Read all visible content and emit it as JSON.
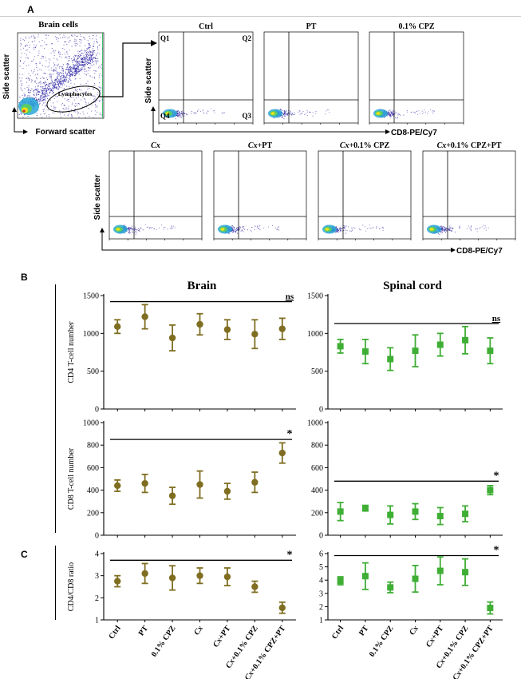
{
  "figure": {
    "panel_labels": [
      "A",
      "B",
      "C"
    ],
    "colors": {
      "brain": "#7f6e21",
      "spinal": "#3fae35",
      "axis": "#000000",
      "gate": "#000000",
      "dot_low": "#3a30a8",
      "dot_mid": "#2aa7d8",
      "dot_high": "#f3e11a",
      "dot_peak": "#d23a1f"
    },
    "icons": [
      "flow-gate-arrow",
      "bracket-arrow"
    ]
  },
  "panel_a": {
    "brain_cells": {
      "title": "Brain cells",
      "ylabel": "Side scatter",
      "xlabel": "Forward scatter",
      "gate_label": "Lymphocytes"
    },
    "quadrant_labels": [
      "Q1",
      "Q2",
      "Q3",
      "Q4"
    ],
    "row1": [
      {
        "title": "Ctrl",
        "italic_prefix": "",
        "suffix": ""
      },
      {
        "title": "PT",
        "italic_prefix": "",
        "suffix": ""
      },
      {
        "title": "0.1% CPZ",
        "italic_prefix": "",
        "suffix": ""
      }
    ],
    "row2": [
      {
        "title": "Cx",
        "italic_prefix": "Cx",
        "suffix": ""
      },
      {
        "title": "Cx+PT",
        "italic_prefix": "Cx",
        "suffix": "+PT"
      },
      {
        "title": "Cx+0.1% CPZ",
        "italic_prefix": "Cx",
        "suffix": "+0.1% CPZ"
      },
      {
        "title": "Cx+0.1% CPZ+PT",
        "italic_prefix": "Cx",
        "suffix": "+0.1% CPZ+PT"
      }
    ],
    "row1_ylabel": "Side scatter",
    "row1_xlabel": "CD8-PE/Cy7",
    "row2_ylabel": "Side scatter",
    "row2_xlabel": "CD8-PE/Cy7"
  },
  "chart_data": [
    {
      "id": "brain-cd4",
      "type": "scatter",
      "title": "Brain",
      "ylabel": "CD4 T-cell number",
      "ylim": [
        0,
        1500
      ],
      "yticks": [
        0,
        500,
        1000,
        1500
      ],
      "categories": [
        "Ctrl",
        "PT",
        "0.1% CPZ",
        "Cx",
        "Cx+PT",
        "Cx+0.1% CPZ",
        "Cx+0.1% CPZ+PT"
      ],
      "values": [
        1090,
        1220,
        940,
        1120,
        1050,
        990,
        1060
      ],
      "errors": [
        90,
        160,
        170,
        140,
        130,
        190,
        140
      ],
      "marker": "circle",
      "series_color": "brain",
      "significance": {
        "label": "ns",
        "value": 1420
      }
    },
    {
      "id": "spinal-cd4",
      "type": "scatter",
      "title": "Spinal cord",
      "ylabel": "",
      "ylim": [
        0,
        1500
      ],
      "yticks": [
        0,
        500,
        1000,
        1500
      ],
      "categories": [
        "Ctrl",
        "PT",
        "0.1% CPZ",
        "Cx",
        "Cx+PT",
        "Cx+0.1% CPZ",
        "Cx+0.1% CPZ+PT"
      ],
      "values": [
        830,
        760,
        660,
        770,
        850,
        910,
        770
      ],
      "errors": [
        90,
        160,
        150,
        210,
        150,
        180,
        170
      ],
      "marker": "square",
      "series_color": "spinal",
      "significance": {
        "label": "ns",
        "value": 1130
      }
    },
    {
      "id": "brain-cd8",
      "type": "scatter",
      "title": "",
      "ylabel": "CD8 T-cell number",
      "ylim": [
        0,
        1000
      ],
      "yticks": [
        0,
        200,
        400,
        600,
        800,
        1000
      ],
      "categories": [
        "Ctrl",
        "PT",
        "0.1% CPZ",
        "Cx",
        "Cx+PT",
        "Cx+0.1% CPZ",
        "Cx+0.1% CPZ+PT"
      ],
      "values": [
        440,
        460,
        350,
        450,
        390,
        470,
        730
      ],
      "errors": [
        50,
        80,
        75,
        120,
        70,
        90,
        90
      ],
      "marker": "circle",
      "series_color": "brain",
      "significance": {
        "label": "*",
        "value": 850
      }
    },
    {
      "id": "spinal-cd8",
      "type": "scatter",
      "title": "",
      "ylabel": "",
      "ylim": [
        0,
        1000
      ],
      "yticks": [
        0,
        200,
        400,
        600,
        800,
        1000
      ],
      "categories": [
        "Ctrl",
        "PT",
        "0.1% CPZ",
        "Cx",
        "Cx+PT",
        "Cx+0.1% CPZ",
        "Cx+0.1% CPZ+PT"
      ],
      "values": [
        210,
        240,
        180,
        210,
        170,
        190,
        400
      ],
      "errors": [
        80,
        25,
        80,
        70,
        75,
        70,
        40
      ],
      "marker": "square",
      "series_color": "spinal",
      "significance": {
        "label": "*",
        "value": 480
      }
    },
    {
      "id": "brain-ratio",
      "type": "scatter",
      "title": "",
      "ylabel": "CD4/CD8 ratio",
      "ylim": [
        1,
        4
      ],
      "yticks": [
        1,
        2,
        3,
        4
      ],
      "categories": [
        "Ctrl",
        "PT",
        "0.1% CPZ",
        "Cx",
        "Cx+PT",
        "Cx+0.1% CPZ",
        "Cx+0.1% CPZ+PT"
      ],
      "values": [
        2.75,
        3.1,
        2.9,
        3.0,
        2.95,
        2.5,
        1.55
      ],
      "errors": [
        0.25,
        0.45,
        0.55,
        0.35,
        0.4,
        0.25,
        0.25
      ],
      "marker": "circle",
      "series_color": "brain",
      "significance": {
        "label": "*",
        "value": 3.7
      },
      "show_xticklabels": true
    },
    {
      "id": "spinal-ratio",
      "type": "scatter",
      "title": "",
      "ylabel": "",
      "ylim": [
        1,
        6
      ],
      "yticks": [
        1,
        2,
        3,
        4,
        5,
        6
      ],
      "categories": [
        "Ctrl",
        "PT",
        "0.1% CPZ",
        "Cx",
        "Cx+PT",
        "Cx+0.1% CPZ",
        "Cx+0.1% CPZ+PT"
      ],
      "values": [
        3.95,
        4.3,
        3.45,
        4.1,
        4.7,
        4.6,
        1.9
      ],
      "errors": [
        0.3,
        1.0,
        0.4,
        1.0,
        1.05,
        1.0,
        0.45
      ],
      "marker": "square",
      "series_color": "spinal",
      "significance": {
        "label": "*",
        "value": 5.85
      },
      "show_xticklabels": true
    }
  ]
}
